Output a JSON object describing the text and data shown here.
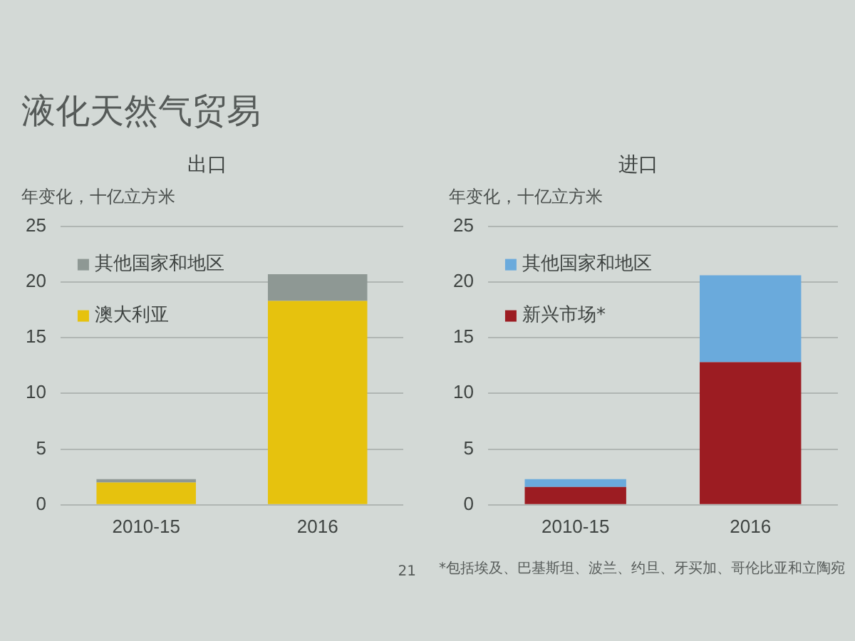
{
  "chart_data": [
    {
      "type": "bar",
      "title": "液化天然气贸易",
      "subtitle": "出口",
      "ylabel": "年变化，十亿立方米",
      "categories": [
        "2010-15",
        "2016"
      ],
      "stacked": true,
      "series": [
        {
          "name": "澳大利亚",
          "color": "#e6c20e",
          "values": [
            2.0,
            18.3
          ]
        },
        {
          "name": "其他国家和地区",
          "color": "#8e9894",
          "values": [
            0.3,
            2.4
          ]
        }
      ],
      "ylim": [
        0,
        25
      ],
      "yticks": [
        0,
        5,
        10,
        15,
        20,
        25
      ],
      "grid": "y",
      "legend": "top left",
      "annotations": [
        "21"
      ]
    },
    {
      "type": "bar",
      "title": "进口",
      "ylabel": "年变化，十亿立方米",
      "categories": [
        "2010-15",
        "2016"
      ],
      "stacked": true,
      "series": [
        {
          "name": "新兴市场*",
          "color": "#9c1c22",
          "values": [
            1.6,
            12.8
          ]
        },
        {
          "name": "其他国家和地区",
          "color": "#6aaadc",
          "values": [
            0.7,
            7.8
          ]
        }
      ],
      "ylim": [
        0,
        25
      ],
      "yticks": [
        0,
        5,
        10,
        15,
        20,
        25
      ],
      "grid": "y",
      "legend": "top left",
      "annotations": [
        "*包括埃及、巴基斯坦、波兰、约旦、牙买加、哥伦比亚和立陶宛"
      ]
    }
  ]
}
